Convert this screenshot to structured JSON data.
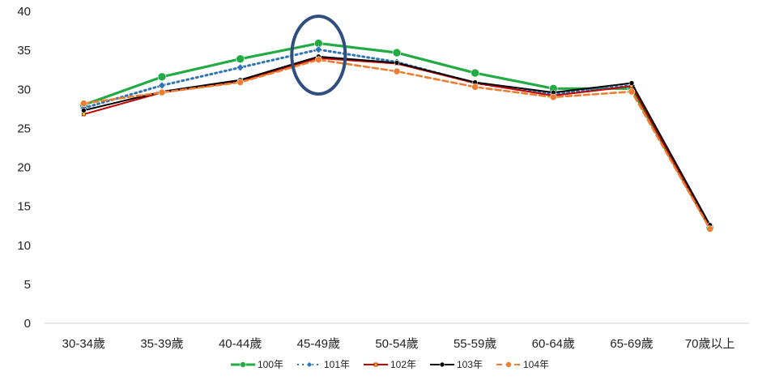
{
  "chart_data": {
    "type": "line",
    "categories": [
      "30-34歲",
      "35-39歲",
      "40-44歲",
      "45-49歲",
      "50-54歲",
      "55-59歲",
      "60-64歲",
      "65-69歲",
      "70歲以上"
    ],
    "ylim": [
      0,
      40
    ],
    "yticks": [
      0,
      5,
      10,
      15,
      20,
      25,
      30,
      35,
      40
    ],
    "grid": false,
    "legend_position": "bottom",
    "series": [
      {
        "name": "100年",
        "color": "#22aa44",
        "dash": "solid",
        "marker": "circle",
        "values": [
          28.0,
          31.6,
          33.9,
          35.9,
          34.7,
          32.1,
          30.1,
          30.1,
          12.2
        ]
      },
      {
        "name": "101年",
        "color": "#2e75b6",
        "dash": "dotted",
        "marker": "diamond",
        "values": [
          27.6,
          30.5,
          32.8,
          35.1,
          33.5,
          30.8,
          29.4,
          30.5,
          12.5
        ]
      },
      {
        "name": "102年",
        "color": "#c00000",
        "dash": "solid",
        "marker": "square",
        "values": [
          26.8,
          29.6,
          31.0,
          34.0,
          33.3,
          30.8,
          29.2,
          30.4,
          12.3
        ]
      },
      {
        "name": "103年",
        "color": "#000000",
        "dash": "solid",
        "marker": "circle",
        "values": [
          27.3,
          29.7,
          31.2,
          34.2,
          33.4,
          30.9,
          29.6,
          30.8,
          12.6
        ]
      },
      {
        "name": "104年",
        "color": "#ed7d31",
        "dash": "dashed",
        "marker": "circle",
        "values": [
          28.2,
          29.6,
          30.9,
          33.8,
          32.3,
          30.3,
          29.0,
          29.7,
          12.1
        ]
      }
    ],
    "annotations": [
      {
        "type": "ellipse",
        "category": "45-49歲",
        "color": "#2f4f7f"
      }
    ]
  }
}
